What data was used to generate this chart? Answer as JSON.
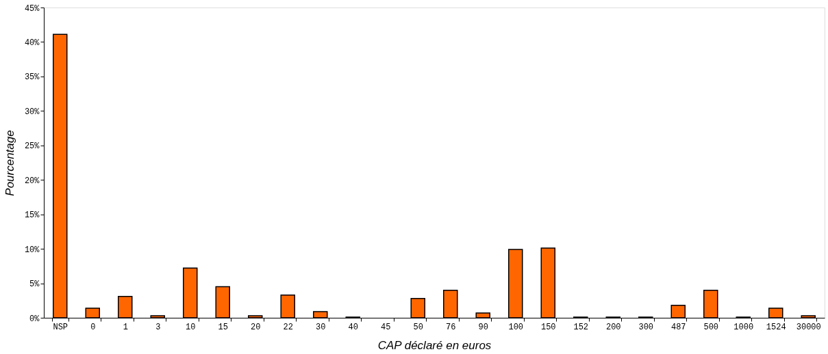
{
  "chart_data": {
    "type": "bar",
    "xlabel": "CAP déclaré en euros",
    "ylabel": "Pourcentage",
    "categories": [
      "NSP",
      "0",
      "1",
      "3",
      "10",
      "15",
      "20",
      "22",
      "30",
      "40",
      "45",
      "50",
      "76",
      "90",
      "100",
      "150",
      "152",
      "200",
      "300",
      "487",
      "500",
      "1000",
      "1524",
      "30000"
    ],
    "values": [
      41.1,
      1.4,
      3.1,
      0.3,
      7.2,
      4.5,
      0.3,
      3.3,
      0.9,
      0.1,
      0,
      2.8,
      4.0,
      0.7,
      9.9,
      10.1,
      0.1,
      0.1,
      0.1,
      1.8,
      4.0,
      0.1,
      1.4,
      0.3
    ],
    "color": "#ff6600",
    "ylim": [
      0,
      45
    ],
    "yticks": [
      {
        "value": 0,
        "label": "0%"
      },
      {
        "value": 5,
        "label": "5%"
      },
      {
        "value": 10,
        "label": "10%"
      },
      {
        "value": 15,
        "label": "15%"
      },
      {
        "value": 20,
        "label": "20%"
      },
      {
        "value": 25,
        "label": "25%"
      },
      {
        "value": 30,
        "label": "30%"
      },
      {
        "value": 35,
        "label": "35%"
      },
      {
        "value": 40,
        "label": "40%"
      },
      {
        "value": 45,
        "label": "45%"
      }
    ],
    "grid": false
  }
}
